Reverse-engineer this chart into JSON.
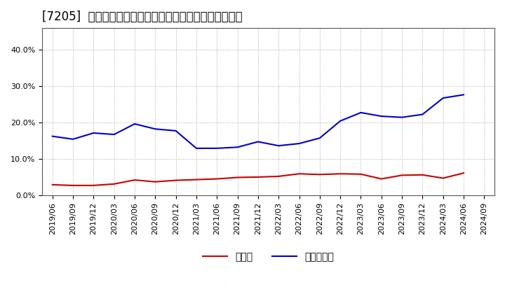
{
  "title": "[7205]  現預金、有利子負債の総資産に対する比率の推移",
  "xlabel": "",
  "ylabel": "",
  "ylim": [
    0.0,
    0.46
  ],
  "yticks": [
    0.0,
    0.1,
    0.2,
    0.3,
    0.4
  ],
  "ytick_labels": [
    "0.0%",
    "10.0%",
    "20.0%",
    "30.0%",
    "40.0%"
  ],
  "dates": [
    "2019/06",
    "2019/09",
    "2019/12",
    "2020/03",
    "2020/06",
    "2020/09",
    "2020/12",
    "2021/03",
    "2021/06",
    "2021/09",
    "2021/12",
    "2022/03",
    "2022/06",
    "2022/09",
    "2022/12",
    "2023/03",
    "2023/06",
    "2023/09",
    "2023/12",
    "2024/03",
    "2024/06",
    "2024/09"
  ],
  "cash": [
    0.03,
    0.028,
    0.028,
    0.032,
    0.043,
    0.038,
    0.042,
    0.044,
    0.046,
    0.05,
    0.051,
    0.053,
    0.06,
    0.058,
    0.06,
    0.059,
    0.046,
    0.056,
    0.057,
    0.048,
    0.062,
    null
  ],
  "debt": [
    0.163,
    0.155,
    0.172,
    0.168,
    0.197,
    0.183,
    0.178,
    0.13,
    0.13,
    0.133,
    0.148,
    0.137,
    0.143,
    0.158,
    0.205,
    0.228,
    0.218,
    0.215,
    0.223,
    0.268,
    0.277,
    null
  ],
  "cash_color": "#cc0000",
  "debt_color": "#0000cc",
  "background_color": "#ffffff",
  "plot_bg_color": "#ffffff",
  "grid_color": "#aaaaaa",
  "legend_cash": "現預金",
  "legend_debt": "有利子負債",
  "title_fontsize": 12,
  "tick_fontsize": 8,
  "legend_fontsize": 10
}
